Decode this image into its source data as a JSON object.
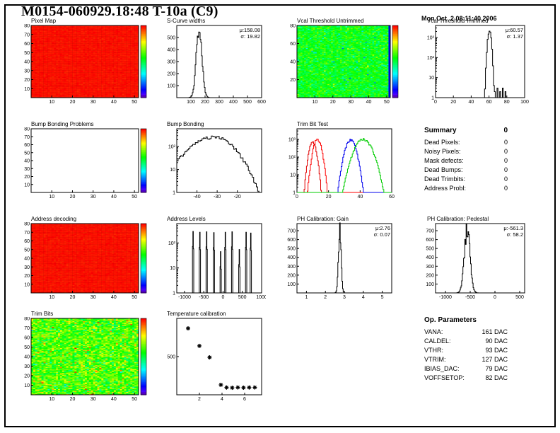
{
  "page": {
    "title": "M0154-060929.18:48 T-10a (C9)",
    "timestamp": "Mon Oct  2 08:11:40 2006"
  },
  "summary": {
    "header": "Summary",
    "header_value": "0",
    "rows": [
      {
        "label": "Dead Pixels:",
        "value": "0"
      },
      {
        "label": "Noisy Pixels:",
        "value": "0"
      },
      {
        "label": "Mask defects:",
        "value": "0"
      },
      {
        "label": "Dead Bumps:",
        "value": "0"
      },
      {
        "label": "Dead Trimbits:",
        "value": "0"
      },
      {
        "label": "Address Probl:",
        "value": "0"
      }
    ]
  },
  "op_parameters": {
    "header": "Op. Parameters",
    "rows": [
      {
        "label": "VANA:",
        "value": "161 DAC"
      },
      {
        "label": "CALDEL:",
        "value": "90 DAC"
      },
      {
        "label": "VTHR:",
        "value": "93 DAC"
      },
      {
        "label": "VTRIM:",
        "value": "127 DAC"
      },
      {
        "label": "IBIAS_DAC:",
        "value": "79 DAC"
      },
      {
        "label": "VOFFSETOP:",
        "value": "82 DAC"
      }
    ]
  },
  "chart_data": [
    {
      "id": "pixel-map",
      "title": "Pixel Map",
      "type": "heatmap",
      "nx": 52,
      "ny": 80,
      "pattern": "solid-red",
      "colorbar": true,
      "x_ticks": [
        10,
        20,
        30,
        40,
        50
      ],
      "y_ticks": [
        10,
        20,
        30,
        40,
        50,
        60,
        70,
        80
      ]
    },
    {
      "id": "s-curve-widths",
      "title": "S-Curve widths",
      "type": "histogram",
      "x": {
        "min": 0,
        "max": 600,
        "ticks": [
          100,
          200,
          300,
          400,
          500,
          600
        ]
      },
      "y": {
        "min": 0,
        "max": 600,
        "ticks": [
          100,
          200,
          300,
          400,
          500
        ]
      },
      "dist": {
        "mu": 158.08,
        "sigma": 19.82,
        "peak": 575
      },
      "bins": 120,
      "stats": {
        "mu": "μ:158.08",
        "sigma": "σ: 19.82"
      }
    },
    {
      "id": "vcal-threshold-untrimmed",
      "title": "Vcal Threshold Untrimmed",
      "type": "heatmap",
      "nx": 52,
      "ny": 80,
      "pattern": "noise-green",
      "colorbar": true,
      "x_ticks": [
        10,
        20,
        30,
        40,
        50
      ],
      "y_ticks": [
        20,
        40,
        60,
        80
      ]
    },
    {
      "id": "vcal-threshold-trimmed",
      "title": "Vcal Threshold Trimmed",
      "type": "histogram",
      "log_y": true,
      "x": {
        "min": 0,
        "max": 100,
        "ticks": [
          0,
          20,
          40,
          60,
          80,
          100
        ]
      },
      "y": {
        "min": 1,
        "max": 4000,
        "ticks": [
          {
            "v": 1,
            "label": "1"
          },
          {
            "v": 10,
            "label": "10"
          },
          {
            "v": 100,
            "label": "10²"
          },
          {
            "v": 1000,
            "label": "10³"
          }
        ]
      },
      "dist": {
        "mu": 60.57,
        "sigma": 1.37,
        "peak": 2300
      },
      "bins": 100,
      "extras": [
        [
          66,
          2
        ],
        [
          69,
          3
        ],
        [
          72,
          2
        ],
        [
          75,
          3
        ],
        [
          78,
          2
        ]
      ],
      "stats": {
        "mu": "μ:60.57",
        "sigma": "σ: 1.37"
      }
    },
    {
      "id": "bump-bonding-problems",
      "title": "Bump Bonding Problems",
      "type": "heatmap",
      "nx": 52,
      "ny": 80,
      "pattern": "empty",
      "colorbar": true,
      "x_ticks": [
        10,
        20,
        30,
        40,
        50
      ],
      "y_ticks": [
        10,
        20,
        30,
        40,
        50,
        60,
        70,
        80
      ]
    },
    {
      "id": "bump-bonding",
      "title": "Bump Bonding",
      "type": "histogram",
      "log_y": true,
      "x": {
        "min": -50,
        "max": -8,
        "ticks": [
          -40,
          -30,
          -20
        ]
      },
      "y": {
        "min": 1,
        "max": 600,
        "ticks": [
          {
            "v": 1,
            "label": "1"
          },
          {
            "v": 10,
            "label": "10"
          },
          {
            "v": 100,
            "label": "10²"
          }
        ]
      },
      "dist": {
        "mu": -31,
        "sigma_l": 8.5,
        "sigma_r": 6.5,
        "peak": 260
      },
      "bins": 64
    },
    {
      "id": "trim-bit-test",
      "title": "Trim Bit Test",
      "type": "histogram",
      "log_y": true,
      "x": {
        "min": 0,
        "max": 60,
        "ticks": [
          0,
          20,
          40,
          60
        ]
      },
      "y": {
        "min": 1,
        "max": 4000,
        "ticks": [
          {
            "v": 1,
            "label": "1"
          },
          {
            "v": 10,
            "label": "10"
          },
          {
            "v": 100,
            "label": "10²"
          },
          {
            "v": 1000,
            "label": "10³"
          }
        ]
      },
      "bins": 120,
      "series": [
        {
          "color": "#e00000",
          "mu": 10,
          "sigma": 1.5,
          "peak": 700
        },
        {
          "color": "#ff0000",
          "mu": 13,
          "sigma": 1.7,
          "peak": 1000
        },
        {
          "color": "#0000ee",
          "mu": 34,
          "sigma": 2.2,
          "peak": 900
        },
        {
          "color": "#00cc00",
          "mu": 42,
          "sigma": 3.5,
          "peak": 1000
        }
      ]
    },
    {
      "id": "address-decoding",
      "title": "Address decoding",
      "type": "heatmap",
      "nx": 52,
      "ny": 80,
      "pattern": "solid-red",
      "colorbar": true,
      "x_ticks": [
        10,
        20,
        30,
        40,
        50
      ],
      "y_ticks": [
        10,
        20,
        30,
        40,
        50,
        60,
        70,
        80
      ]
    },
    {
      "id": "address-levels",
      "title": "Address Levels",
      "type": "spikes",
      "log_y": true,
      "x": {
        "min": -1200,
        "max": 1000,
        "ticks": [
          -1000,
          -500,
          0,
          500,
          1000
        ]
      },
      "y": {
        "min": 1,
        "max": 600,
        "ticks": [
          {
            "v": 1,
            "label": "1"
          },
          {
            "v": 10,
            "label": "10"
          },
          {
            "v": 100,
            "label": "10²"
          }
        ]
      },
      "spikes": [
        [
          -780,
          290
        ],
        [
          -600,
          270
        ],
        [
          -420,
          280
        ],
        [
          -240,
          260
        ],
        [
          -60,
          45
        ],
        [
          60,
          270
        ],
        [
          240,
          280
        ],
        [
          420,
          55
        ],
        [
          600,
          270
        ],
        [
          720,
          250
        ]
      ]
    },
    {
      "id": "ph-calibration-gain",
      "title": "PH Calibration: Gain",
      "type": "histogram",
      "x": {
        "min": 0.5,
        "max": 5.5,
        "ticks": [
          1,
          2,
          3,
          4,
          5
        ]
      },
      "y": {
        "min": 0,
        "max": 780,
        "ticks": [
          100,
          200,
          300,
          400,
          500,
          600,
          700
        ]
      },
      "dist": {
        "mu": 2.76,
        "sigma": 0.07,
        "peak": 730
      },
      "bins": 160,
      "stats": {
        "mu": "μ:2.76",
        "sigma": "σ: 0.07"
      }
    },
    {
      "id": "ph-calibration-pedestal",
      "title": "PH Calibration: Pedestal",
      "type": "histogram",
      "x": {
        "min": -1200,
        "max": 600,
        "ticks": [
          -1000,
          -500,
          0,
          500
        ]
      },
      "y": {
        "min": 0,
        "max": 780,
        "ticks": [
          100,
          200,
          300,
          400,
          500,
          600,
          700
        ]
      },
      "dist": {
        "mu": -561.3,
        "sigma": 58.2,
        "peak": 700
      },
      "bins": 140,
      "stats": {
        "mu": "μ:-561.3",
        "sigma": "σ: 58.2"
      }
    },
    {
      "id": "trim-bits",
      "title": "Trim Bits",
      "type": "heatmap",
      "nx": 52,
      "ny": 80,
      "pattern": "noise-yellow-green",
      "colorbar": true,
      "x_ticks": [
        10,
        20,
        30,
        40,
        50
      ],
      "y_ticks": [
        10,
        20,
        30,
        40,
        50,
        60,
        70,
        80
      ]
    },
    {
      "id": "temperature-calibration",
      "title": "Temperature calibration",
      "type": "scatter",
      "x": {
        "min": 0,
        "max": 7.5,
        "ticks": [
          2,
          4,
          6
        ]
      },
      "y": {
        "min": 0,
        "max": 1000,
        "ticks": [
          500
        ]
      },
      "points": [
        [
          1,
          870
        ],
        [
          2,
          640
        ],
        [
          2.9,
          490
        ],
        [
          3.9,
          130
        ],
        [
          4.4,
          95
        ],
        [
          4.9,
          92
        ],
        [
          5.4,
          96
        ],
        [
          5.9,
          93
        ],
        [
          6.4,
          95
        ],
        [
          6.9,
          96
        ]
      ]
    }
  ]
}
